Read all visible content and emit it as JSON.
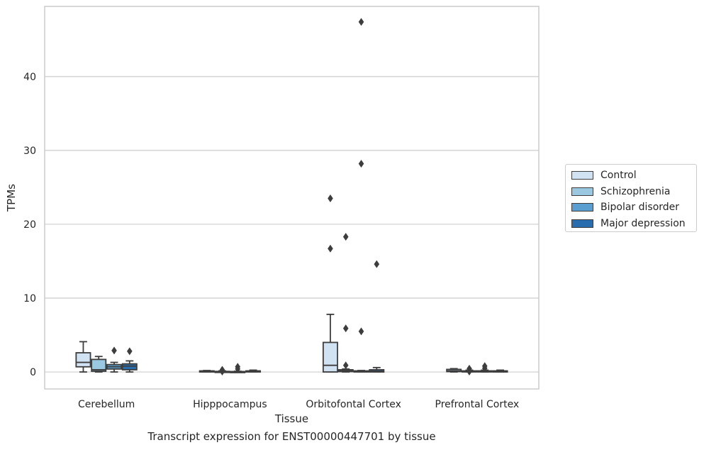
{
  "caption": "Transcript expression for ENST00000447701 by tissue",
  "chart_data": {
    "type": "box",
    "xlabel": "Tissue",
    "ylabel": "TPMs",
    "ylim": [
      -2.3,
      49.5
    ],
    "yticks": [
      0,
      10,
      20,
      30,
      40
    ],
    "grid": "horizontal",
    "legend_position": "right-outside",
    "categories": [
      "Cerebellum",
      "Hipppocampus",
      "Orbitofontal Cortex",
      "Prefrontal Cortex"
    ],
    "series": [
      {
        "name": "Control",
        "color": "#d1e2f2",
        "boxes": [
          {
            "whislo": 0.0,
            "q1": 0.7,
            "med": 1.3,
            "q3": 2.6,
            "whishi": 4.1,
            "fliers": []
          },
          {
            "whislo": 0.0,
            "q1": 0.0,
            "med": 0.05,
            "q3": 0.15,
            "whishi": 0.2,
            "fliers": []
          },
          {
            "whislo": 0.0,
            "q1": 0.0,
            "med": 0.9,
            "q3": 4.0,
            "whishi": 7.8,
            "fliers": [
              16.7,
              23.5
            ]
          },
          {
            "whislo": 0.0,
            "q1": 0.05,
            "med": 0.15,
            "q3": 0.35,
            "whishi": 0.45,
            "fliers": []
          }
        ]
      },
      {
        "name": "Schizophrenia",
        "color": "#9ac8e0",
        "boxes": [
          {
            "whislo": 0.0,
            "q1": 0.1,
            "med": 0.3,
            "q3": 1.7,
            "whishi": 2.1,
            "fliers": []
          },
          {
            "whislo": 0.0,
            "q1": 0.0,
            "med": 0.03,
            "q3": 0.08,
            "whishi": 0.15,
            "fliers": [
              0.05,
              0.3
            ]
          },
          {
            "whislo": 0.0,
            "q1": 0.05,
            "med": 0.2,
            "q3": 0.3,
            "whishi": 0.4,
            "fliers": [
              0.9,
              5.9,
              18.3
            ]
          },
          {
            "whislo": 0.0,
            "q1": 0.02,
            "med": 0.06,
            "q3": 0.15,
            "whishi": 0.25,
            "fliers": [
              0.05,
              0.45
            ]
          }
        ]
      },
      {
        "name": "Bipolar disorder",
        "color": "#5a9fcf",
        "boxes": [
          {
            "whislo": 0.0,
            "q1": 0.4,
            "med": 0.7,
            "q3": 1.0,
            "whishi": 1.3,
            "fliers": [
              2.9
            ]
          },
          {
            "whislo": 0.0,
            "q1": 0.0,
            "med": 0.02,
            "q3": 0.06,
            "whishi": 0.1,
            "fliers": [
              0.4,
              0.7
            ]
          },
          {
            "whislo": 0.0,
            "q1": 0.0,
            "med": 0.05,
            "q3": 0.15,
            "whishi": 0.2,
            "fliers": [
              5.5,
              28.2,
              47.4
            ]
          },
          {
            "whislo": 0.0,
            "q1": 0.02,
            "med": 0.06,
            "q3": 0.15,
            "whishi": 0.25,
            "fliers": [
              0.5,
              0.8
            ]
          }
        ]
      },
      {
        "name": "Major depression",
        "color": "#2a6daf",
        "boxes": [
          {
            "whislo": 0.0,
            "q1": 0.3,
            "med": 0.8,
            "q3": 1.1,
            "whishi": 1.5,
            "fliers": [
              2.8
            ]
          },
          {
            "whislo": 0.0,
            "q1": 0.0,
            "med": 0.05,
            "q3": 0.15,
            "whishi": 0.25,
            "fliers": []
          },
          {
            "whislo": 0.0,
            "q1": 0.0,
            "med": 0.1,
            "q3": 0.3,
            "whishi": 0.6,
            "fliers": [
              14.6
            ]
          },
          {
            "whislo": 0.0,
            "q1": 0.0,
            "med": 0.05,
            "q3": 0.15,
            "whishi": 0.25,
            "fliers": []
          }
        ]
      }
    ]
  }
}
